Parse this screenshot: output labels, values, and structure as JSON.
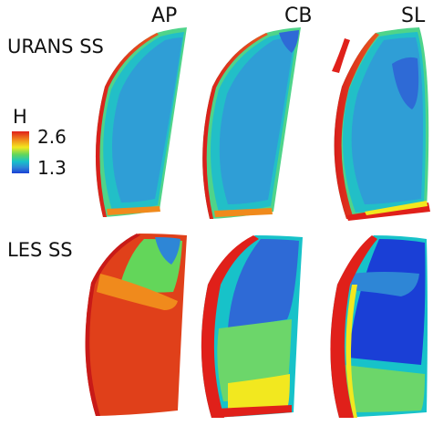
{
  "figure": {
    "columns": [
      "AP",
      "CB",
      "SL"
    ],
    "rows": [
      "URANS SS",
      "LES SS"
    ],
    "colorbar": {
      "title": "H",
      "max_label": "2.6",
      "min_label": "1.3",
      "max": 2.6,
      "min": 1.3,
      "colors": [
        "#e0201a",
        "#f08a1c",
        "#f2e81f",
        "#63d65a",
        "#17c2c9",
        "#2e86d6",
        "#1a3fd6"
      ]
    }
  }
}
